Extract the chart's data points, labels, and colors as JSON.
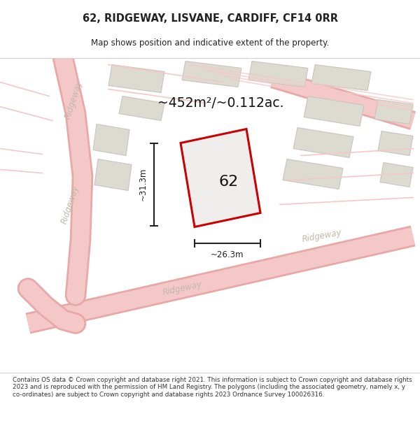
{
  "title": "62, RIDGEWAY, LISVANE, CARDIFF, CF14 0RR",
  "subtitle": "Map shows position and indicative extent of the property.",
  "footer": "Contains OS data © Crown copyright and database right 2021. This information is subject to Crown copyright and database rights 2023 and is reproduced with the permission of HM Land Registry. The polygons (including the associated geometry, namely x, y co-ordinates) are subject to Crown copyright and database rights 2023 Ordnance Survey 100026316.",
  "area_label": "~452m²/~0.112ac.",
  "number_label": "62",
  "width_label": "~26.3m",
  "height_label": "~31.3m",
  "bg_color": "#f5f4f0",
  "map_bg": "#eeecea",
  "road_color": "#f5c8c8",
  "road_outline": "#e8a8a8",
  "building_color": "#dddad2",
  "building_outline": "#c8c5bd",
  "plot_color": "#f0eeec",
  "plot_outline": "#cc0000",
  "road_label_color": "#c0b8aa",
  "dim_color": "#222222",
  "title_color": "#222222",
  "footer_color": "#333333",
  "white": "#ffffff",
  "separator_color": "#d0d0d0"
}
